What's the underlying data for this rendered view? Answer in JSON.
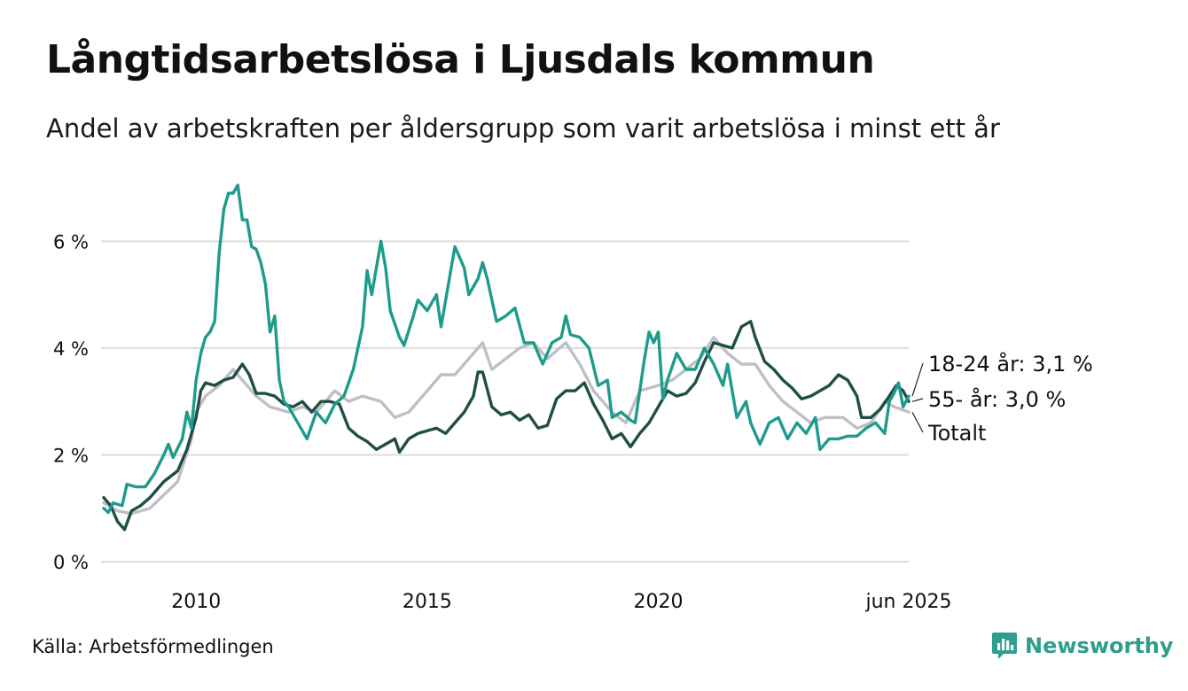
{
  "title": "Långtidsarbetslösa i Ljusdals kommun",
  "subtitle": "Andel av arbetskraften per åldersgrupp som varit arbetslösa i minst ett år",
  "source": "Källa: Arbetsförmedlingen",
  "brand": "Newsworthy",
  "colors": {
    "youth": "#1e9b8a",
    "senior": "#1f4e45",
    "total": "#c0bec6",
    "grid": "#dcdcdc",
    "brand": "#2f9e8c"
  },
  "chart_data": {
    "type": "line",
    "x_range": [
      2008.0,
      2025.42
    ],
    "ylim": [
      0,
      7.2
    ],
    "y_ticks": [
      {
        "value": 0,
        "label": "0 %"
      },
      {
        "value": 2,
        "label": "2 %"
      },
      {
        "value": 4,
        "label": "4 %"
      },
      {
        "value": 6,
        "label": "6 %"
      }
    ],
    "x_ticks": [
      {
        "value": 2010,
        "label": "2010"
      },
      {
        "value": 2015,
        "label": "2015"
      },
      {
        "value": 2020,
        "label": "2020"
      },
      {
        "value": 2025.42,
        "label": "jun 2025"
      }
    ],
    "grid": true,
    "series": [
      {
        "key": "total",
        "name": "Totalt",
        "end_label": "Totalt",
        "points": [
          [
            2008.0,
            1.1
          ],
          [
            2008.3,
            0.95
          ],
          [
            2008.6,
            0.9
          ],
          [
            2009.0,
            1.0
          ],
          [
            2009.3,
            1.25
          ],
          [
            2009.6,
            1.5
          ],
          [
            2009.9,
            2.3
          ],
          [
            2010.0,
            2.8
          ],
          [
            2010.2,
            3.1
          ],
          [
            2010.5,
            3.3
          ],
          [
            2010.8,
            3.6
          ],
          [
            2011.0,
            3.4
          ],
          [
            2011.3,
            3.1
          ],
          [
            2011.6,
            2.9
          ],
          [
            2012.0,
            2.8
          ],
          [
            2012.3,
            2.9
          ],
          [
            2012.6,
            2.8
          ],
          [
            2013.0,
            3.2
          ],
          [
            2013.3,
            3.0
          ],
          [
            2013.6,
            3.1
          ],
          [
            2014.0,
            3.0
          ],
          [
            2014.3,
            2.7
          ],
          [
            2014.6,
            2.8
          ],
          [
            2015.0,
            3.2
          ],
          [
            2015.3,
            3.5
          ],
          [
            2015.6,
            3.5
          ],
          [
            2016.0,
            3.9
          ],
          [
            2016.2,
            4.1
          ],
          [
            2016.4,
            3.6
          ],
          [
            2016.7,
            3.8
          ],
          [
            2017.0,
            4.0
          ],
          [
            2017.3,
            4.1
          ],
          [
            2017.6,
            3.8
          ],
          [
            2018.0,
            4.1
          ],
          [
            2018.3,
            3.7
          ],
          [
            2018.6,
            3.2
          ],
          [
            2019.0,
            2.8
          ],
          [
            2019.3,
            2.6
          ],
          [
            2019.6,
            3.2
          ],
          [
            2020.0,
            3.3
          ],
          [
            2020.3,
            3.4
          ],
          [
            2020.6,
            3.6
          ],
          [
            2020.9,
            3.8
          ],
          [
            2021.2,
            4.2
          ],
          [
            2021.5,
            3.9
          ],
          [
            2021.8,
            3.7
          ],
          [
            2022.1,
            3.7
          ],
          [
            2022.4,
            3.3
          ],
          [
            2022.7,
            3.0
          ],
          [
            2023.0,
            2.8
          ],
          [
            2023.3,
            2.6
          ],
          [
            2023.6,
            2.7
          ],
          [
            2024.0,
            2.7
          ],
          [
            2024.3,
            2.5
          ],
          [
            2024.6,
            2.6
          ],
          [
            2024.9,
            3.0
          ],
          [
            2025.1,
            2.9
          ],
          [
            2025.42,
            2.8
          ]
        ]
      },
      {
        "key": "senior",
        "name": "55- år",
        "end_label": "55- år: 3,0 %",
        "points": [
          [
            2008.0,
            1.2
          ],
          [
            2008.15,
            1.05
          ],
          [
            2008.3,
            0.75
          ],
          [
            2008.45,
            0.6
          ],
          [
            2008.6,
            0.95
          ],
          [
            2008.8,
            1.05
          ],
          [
            2009.0,
            1.2
          ],
          [
            2009.3,
            1.5
          ],
          [
            2009.6,
            1.7
          ],
          [
            2009.8,
            2.1
          ],
          [
            2010.0,
            2.7
          ],
          [
            2010.1,
            3.2
          ],
          [
            2010.2,
            3.35
          ],
          [
            2010.4,
            3.3
          ],
          [
            2010.6,
            3.4
          ],
          [
            2010.8,
            3.45
          ],
          [
            2011.0,
            3.7
          ],
          [
            2011.15,
            3.5
          ],
          [
            2011.3,
            3.15
          ],
          [
            2011.5,
            3.15
          ],
          [
            2011.7,
            3.1
          ],
          [
            2011.9,
            2.95
          ],
          [
            2012.1,
            2.9
          ],
          [
            2012.3,
            3.0
          ],
          [
            2012.5,
            2.8
          ],
          [
            2012.7,
            3.0
          ],
          [
            2012.9,
            3.0
          ],
          [
            2013.1,
            2.95
          ],
          [
            2013.3,
            2.5
          ],
          [
            2013.5,
            2.35
          ],
          [
            2013.7,
            2.25
          ],
          [
            2013.9,
            2.1
          ],
          [
            2014.1,
            2.2
          ],
          [
            2014.3,
            2.3
          ],
          [
            2014.4,
            2.05
          ],
          [
            2014.6,
            2.3
          ],
          [
            2014.8,
            2.4
          ],
          [
            2015.0,
            2.45
          ],
          [
            2015.2,
            2.5
          ],
          [
            2015.4,
            2.4
          ],
          [
            2015.6,
            2.6
          ],
          [
            2015.8,
            2.8
          ],
          [
            2016.0,
            3.1
          ],
          [
            2016.1,
            3.55
          ],
          [
            2016.2,
            3.55
          ],
          [
            2016.4,
            2.9
          ],
          [
            2016.6,
            2.75
          ],
          [
            2016.8,
            2.8
          ],
          [
            2017.0,
            2.65
          ],
          [
            2017.2,
            2.75
          ],
          [
            2017.4,
            2.5
          ],
          [
            2017.6,
            2.55
          ],
          [
            2017.8,
            3.05
          ],
          [
            2018.0,
            3.2
          ],
          [
            2018.2,
            3.2
          ],
          [
            2018.4,
            3.35
          ],
          [
            2018.6,
            2.95
          ],
          [
            2018.8,
            2.65
          ],
          [
            2019.0,
            2.3
          ],
          [
            2019.2,
            2.4
          ],
          [
            2019.4,
            2.15
          ],
          [
            2019.6,
            2.4
          ],
          [
            2019.8,
            2.6
          ],
          [
            2020.0,
            2.9
          ],
          [
            2020.2,
            3.2
          ],
          [
            2020.4,
            3.1
          ],
          [
            2020.6,
            3.15
          ],
          [
            2020.8,
            3.35
          ],
          [
            2021.0,
            3.75
          ],
          [
            2021.2,
            4.1
          ],
          [
            2021.4,
            4.05
          ],
          [
            2021.6,
            4.0
          ],
          [
            2021.8,
            4.4
          ],
          [
            2022.0,
            4.5
          ],
          [
            2022.1,
            4.2
          ],
          [
            2022.3,
            3.75
          ],
          [
            2022.5,
            3.6
          ],
          [
            2022.7,
            3.4
          ],
          [
            2022.9,
            3.25
          ],
          [
            2023.1,
            3.05
          ],
          [
            2023.3,
            3.1
          ],
          [
            2023.5,
            3.2
          ],
          [
            2023.7,
            3.3
          ],
          [
            2023.9,
            3.5
          ],
          [
            2024.1,
            3.4
          ],
          [
            2024.3,
            3.1
          ],
          [
            2024.4,
            2.7
          ],
          [
            2024.6,
            2.7
          ],
          [
            2024.8,
            2.85
          ],
          [
            2025.0,
            3.1
          ],
          [
            2025.15,
            3.3
          ],
          [
            2025.3,
            3.2
          ],
          [
            2025.42,
            3.0
          ]
        ]
      },
      {
        "key": "youth",
        "name": "18-24 år",
        "end_label": "18-24 år: 3,1 %",
        "points": [
          [
            2008.0,
            1.0
          ],
          [
            2008.1,
            0.92
          ],
          [
            2008.2,
            1.1
          ],
          [
            2008.4,
            1.05
          ],
          [
            2008.5,
            1.45
          ],
          [
            2008.7,
            1.4
          ],
          [
            2008.9,
            1.4
          ],
          [
            2009.1,
            1.65
          ],
          [
            2009.3,
            2.0
          ],
          [
            2009.4,
            2.2
          ],
          [
            2009.5,
            1.95
          ],
          [
            2009.7,
            2.3
          ],
          [
            2009.8,
            2.8
          ],
          [
            2009.9,
            2.5
          ],
          [
            2010.0,
            3.4
          ],
          [
            2010.1,
            3.9
          ],
          [
            2010.2,
            4.2
          ],
          [
            2010.3,
            4.3
          ],
          [
            2010.4,
            4.5
          ],
          [
            2010.5,
            5.8
          ],
          [
            2010.6,
            6.6
          ],
          [
            2010.7,
            6.9
          ],
          [
            2010.8,
            6.9
          ],
          [
            2010.9,
            7.05
          ],
          [
            2011.0,
            6.4
          ],
          [
            2011.1,
            6.4
          ],
          [
            2011.2,
            5.9
          ],
          [
            2011.3,
            5.85
          ],
          [
            2011.4,
            5.6
          ],
          [
            2011.5,
            5.2
          ],
          [
            2011.6,
            4.3
          ],
          [
            2011.7,
            4.6
          ],
          [
            2011.8,
            3.4
          ],
          [
            2011.9,
            3.0
          ],
          [
            2012.0,
            2.9
          ],
          [
            2012.2,
            2.6
          ],
          [
            2012.4,
            2.3
          ],
          [
            2012.6,
            2.8
          ],
          [
            2012.8,
            2.6
          ],
          [
            2013.0,
            2.95
          ],
          [
            2013.2,
            3.1
          ],
          [
            2013.4,
            3.6
          ],
          [
            2013.6,
            4.4
          ],
          [
            2013.7,
            5.45
          ],
          [
            2013.8,
            5.0
          ],
          [
            2014.0,
            6.0
          ],
          [
            2014.1,
            5.5
          ],
          [
            2014.2,
            4.7
          ],
          [
            2014.4,
            4.2
          ],
          [
            2014.5,
            4.05
          ],
          [
            2014.7,
            4.6
          ],
          [
            2014.8,
            4.9
          ],
          [
            2015.0,
            4.7
          ],
          [
            2015.2,
            5.0
          ],
          [
            2015.3,
            4.4
          ],
          [
            2015.5,
            5.4
          ],
          [
            2015.6,
            5.9
          ],
          [
            2015.8,
            5.5
          ],
          [
            2015.9,
            5.0
          ],
          [
            2016.1,
            5.3
          ],
          [
            2016.2,
            5.6
          ],
          [
            2016.3,
            5.3
          ],
          [
            2016.5,
            4.5
          ],
          [
            2016.7,
            4.6
          ],
          [
            2016.9,
            4.75
          ],
          [
            2017.1,
            4.1
          ],
          [
            2017.3,
            4.1
          ],
          [
            2017.5,
            3.7
          ],
          [
            2017.7,
            4.1
          ],
          [
            2017.9,
            4.2
          ],
          [
            2018.0,
            4.6
          ],
          [
            2018.1,
            4.25
          ],
          [
            2018.3,
            4.2
          ],
          [
            2018.5,
            4.0
          ],
          [
            2018.7,
            3.3
          ],
          [
            2018.9,
            3.4
          ],
          [
            2019.0,
            2.7
          ],
          [
            2019.2,
            2.8
          ],
          [
            2019.4,
            2.65
          ],
          [
            2019.5,
            2.6
          ],
          [
            2019.7,
            3.8
          ],
          [
            2019.8,
            4.3
          ],
          [
            2019.9,
            4.1
          ],
          [
            2020.0,
            4.3
          ],
          [
            2020.1,
            3.05
          ],
          [
            2020.2,
            3.4
          ],
          [
            2020.4,
            3.9
          ],
          [
            2020.6,
            3.6
          ],
          [
            2020.8,
            3.6
          ],
          [
            2021.0,
            4.0
          ],
          [
            2021.2,
            3.7
          ],
          [
            2021.4,
            3.3
          ],
          [
            2021.5,
            3.7
          ],
          [
            2021.7,
            2.7
          ],
          [
            2021.9,
            3.0
          ],
          [
            2022.0,
            2.6
          ],
          [
            2022.2,
            2.2
          ],
          [
            2022.4,
            2.6
          ],
          [
            2022.6,
            2.7
          ],
          [
            2022.8,
            2.3
          ],
          [
            2023.0,
            2.6
          ],
          [
            2023.2,
            2.4
          ],
          [
            2023.4,
            2.7
          ],
          [
            2023.5,
            2.1
          ],
          [
            2023.7,
            2.3
          ],
          [
            2023.9,
            2.3
          ],
          [
            2024.1,
            2.35
          ],
          [
            2024.3,
            2.35
          ],
          [
            2024.5,
            2.5
          ],
          [
            2024.7,
            2.6
          ],
          [
            2024.9,
            2.4
          ],
          [
            2025.0,
            3.0
          ],
          [
            2025.1,
            3.15
          ],
          [
            2025.2,
            3.35
          ],
          [
            2025.3,
            2.9
          ],
          [
            2025.42,
            3.1
          ]
        ]
      }
    ]
  }
}
